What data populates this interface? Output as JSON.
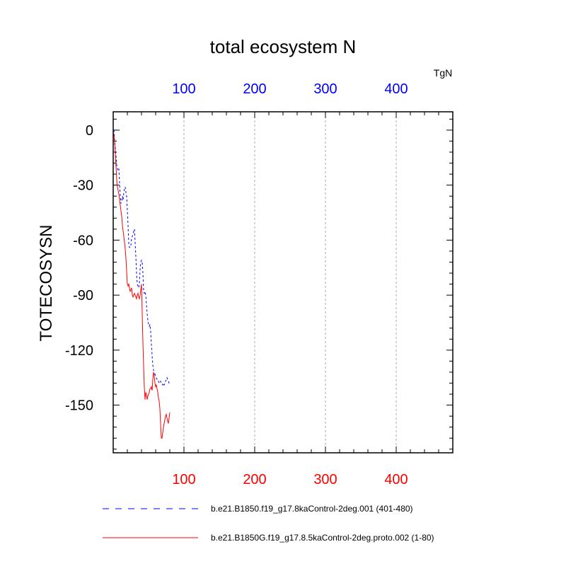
{
  "chart_data": {
    "type": "line",
    "title": "total ecosystem N",
    "ylabel": "TOTECOSYSN",
    "units": "TgN",
    "xlim": [
      0,
      480
    ],
    "ylim": [
      -176,
      10
    ],
    "x_ticks": [
      100,
      200,
      300,
      400
    ],
    "x_tick_labels": [
      "100",
      "200",
      "300",
      "400"
    ],
    "top_tick_labels": [
      "100",
      "200",
      "300",
      "400"
    ],
    "y_ticks": [
      0,
      -30,
      -60,
      -90,
      -120,
      -150
    ],
    "y_tick_labels": [
      "0",
      "-30",
      "-60",
      "-90",
      "-120",
      "-150"
    ],
    "grid": "vertical dashed at major x ticks",
    "colors": {
      "series1": "#0000ff",
      "series2": "#ff0000",
      "axes": "#000000",
      "grid": "#aaaaaa"
    },
    "series": [
      {
        "name": "b.e21.B1850.f19_g17.8kaControl-2deg.001 (401-480)",
        "style": "dashed",
        "color": "#0000ff",
        "x": [
          1,
          2,
          3,
          4,
          5,
          6,
          7,
          8,
          9,
          10,
          11,
          12,
          13,
          14,
          15,
          16,
          17,
          18,
          19,
          20,
          21,
          22,
          23,
          24,
          25,
          26,
          27,
          28,
          29,
          30,
          31,
          32,
          33,
          34,
          35,
          36,
          37,
          38,
          39,
          40,
          41,
          42,
          43,
          44,
          45,
          46,
          47,
          48,
          49,
          50,
          51,
          52,
          53,
          54,
          55,
          56,
          57,
          58,
          59,
          60,
          61,
          62,
          63,
          64,
          65,
          66,
          67,
          68,
          69,
          70,
          71,
          72,
          73,
          74,
          75,
          76,
          77,
          78,
          79,
          80
        ],
        "y": [
          0,
          -5,
          -10,
          -14,
          -19,
          -21,
          -22,
          -21,
          -29,
          -36,
          -40,
          -39,
          -36,
          -38,
          -34,
          -32,
          -31,
          -34,
          -36,
          -44,
          -52,
          -62,
          -64,
          -64,
          -63,
          -59,
          -58,
          -57,
          -55,
          -54,
          -61,
          -69,
          -78,
          -84,
          -85,
          -86,
          -84,
          -76,
          -72,
          -71,
          -72,
          -78,
          -88,
          -89,
          -88,
          -90,
          -95,
          -100,
          -104,
          -106,
          -107,
          -106,
          -110,
          -117,
          -123,
          -128,
          -131,
          -134,
          -133,
          -134,
          -135,
          -136,
          -137,
          -137,
          -138,
          -138,
          -137,
          -138,
          -138,
          -139,
          -138,
          -139,
          -138,
          -137,
          -136,
          -135,
          -136,
          -137,
          -138,
          -138
        ]
      },
      {
        "name": "b.e21.B1850G.f19_g17.8.5kaControl-2deg.proto.002 (1-80)",
        "style": "solid",
        "color": "#ff0000",
        "x": [
          1,
          2,
          3,
          4,
          5,
          6,
          7,
          8,
          9,
          10,
          11,
          12,
          13,
          14,
          15,
          16,
          17,
          18,
          19,
          20,
          21,
          22,
          23,
          24,
          25,
          26,
          27,
          28,
          29,
          30,
          31,
          32,
          33,
          34,
          35,
          36,
          37,
          38,
          39,
          40,
          41,
          42,
          43,
          44,
          45,
          46,
          47,
          48,
          49,
          50,
          51,
          52,
          53,
          54,
          55,
          56,
          57,
          58,
          59,
          60,
          61,
          62,
          63,
          64,
          65,
          66,
          67,
          68,
          69,
          70,
          71,
          72,
          73,
          74,
          75,
          76,
          77,
          78,
          79,
          80
        ],
        "y": [
          -2,
          -7,
          -13,
          -20,
          -27,
          -31,
          -33,
          -35,
          -38,
          -41,
          -44,
          -47,
          -52,
          -55,
          -58,
          -61,
          -65,
          -70,
          -77,
          -84,
          -85,
          -84,
          -86,
          -88,
          -87,
          -86,
          -90,
          -91,
          -90,
          -89,
          -90,
          -91,
          -92,
          -90,
          -89,
          -91,
          -92,
          -90,
          -87,
          -84,
          -100,
          -116,
          -129,
          -140,
          -147,
          -143,
          -144,
          -147,
          -145,
          -144,
          -143,
          -141,
          -141,
          -140,
          -142,
          -136,
          -132,
          -134,
          -138,
          -140,
          -139,
          -141,
          -143,
          -146,
          -148,
          -152,
          -160,
          -168,
          -168,
          -165,
          -162,
          -160,
          -158,
          -156,
          -155,
          -157,
          -159,
          -160,
          -157,
          -154
        ]
      }
    ]
  }
}
